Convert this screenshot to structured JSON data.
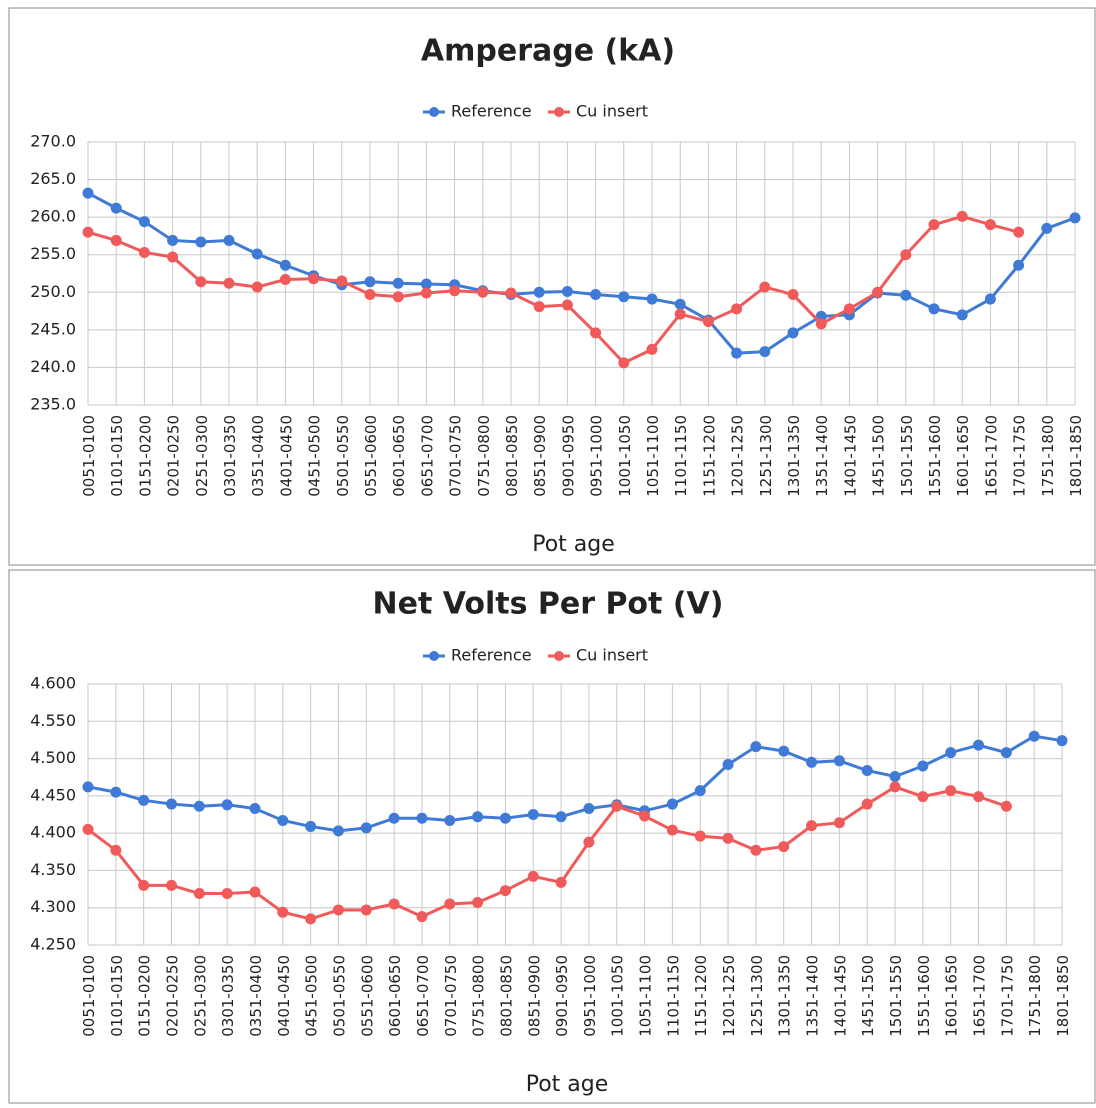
{
  "chart_data": [
    {
      "type": "line",
      "title": "Amperage (kA)",
      "x_label": "Pot age",
      "grid": true,
      "legend": "top",
      "categories": [
        "0051-0100",
        "0101-0150",
        "0151-0200",
        "0201-0250",
        "0251-0300",
        "0301-0350",
        "0351-0400",
        "0401-0450",
        "0451-0500",
        "0501-0550",
        "0551-0600",
        "0601-0650",
        "0651-0700",
        "0701-0750",
        "0751-0800",
        "0801-0850",
        "0851-0900",
        "0901-0950",
        "0951-1000",
        "1001-1050",
        "1051-1100",
        "1101-1150",
        "1151-1200",
        "1201-1250",
        "1251-1300",
        "1301-1350",
        "1351-1400",
        "1401-1450",
        "1451-1500",
        "1501-1550",
        "1551-1600",
        "1601-1650",
        "1651-1700",
        "1701-1750",
        "1751-1800",
        "1801-1850"
      ],
      "ylim": [
        235,
        270
      ],
      "yticks": [
        {
          "value": 235,
          "label": "235.0"
        },
        {
          "value": 240,
          "label": "240.0"
        },
        {
          "value": 245,
          "label": "245.0"
        },
        {
          "value": 250,
          "label": "250.0"
        },
        {
          "value": 255,
          "label": "255.0"
        },
        {
          "value": 260,
          "label": "260.0"
        },
        {
          "value": 265,
          "label": "265.0"
        },
        {
          "value": 270,
          "label": "270.0"
        }
      ],
      "series": [
        {
          "name": "Reference",
          "color": "#3f7bd6",
          "values": [
            263.2,
            261.2,
            259.4,
            256.9,
            256.7,
            256.9,
            255.1,
            253.6,
            252.2,
            251.0,
            251.4,
            251.2,
            251.1,
            251.0,
            250.2,
            249.7,
            250.0,
            250.1,
            249.7,
            249.4,
            249.1,
            248.4,
            246.3,
            241.9,
            242.1,
            244.6,
            246.8,
            247.0,
            249.9,
            249.6,
            247.8,
            247.0,
            249.1,
            253.6,
            258.5,
            259.9
          ]
        },
        {
          "name": "Cu insert",
          "color": "#f05a5a",
          "values": [
            258.0,
            256.9,
            255.3,
            254.7,
            251.4,
            251.2,
            250.7,
            251.7,
            251.8,
            251.5,
            249.7,
            249.4,
            249.9,
            250.2,
            250.0,
            249.9,
            248.1,
            248.3,
            244.6,
            240.6,
            242.4,
            247.1,
            246.1,
            247.8,
            250.7,
            249.7,
            245.8,
            247.8,
            250.0,
            255.0,
            259.0,
            260.1,
            259.0,
            258.0,
            null,
            null
          ]
        }
      ]
    },
    {
      "type": "line",
      "title": "Net Volts Per Pot (V)",
      "x_label": "Pot age",
      "grid": true,
      "legend": "top",
      "categories": [
        "0051-0100",
        "0101-0150",
        "0151-0200",
        "0201-0250",
        "0251-0300",
        "0301-0350",
        "0351-0400",
        "0401-0450",
        "0451-0500",
        "0501-0550",
        "0551-0600",
        "0601-0650",
        "0651-0700",
        "0701-0750",
        "0751-0800",
        "0801-0850",
        "0851-0900",
        "0901-0950",
        "0951-1000",
        "1001-1050",
        "1051-1100",
        "1101-1150",
        "1151-1200",
        "1201-1250",
        "1251-1300",
        "1301-1350",
        "1351-1400",
        "1401-1450",
        "1451-1500",
        "1501-1550",
        "1551-1600",
        "1601-1650",
        "1651-1700",
        "1701-1750",
        "1751-1800",
        "1801-1850"
      ],
      "ylim": [
        4.25,
        4.6
      ],
      "yticks": [
        {
          "value": 4.25,
          "label": "4.250"
        },
        {
          "value": 4.3,
          "label": "4.300"
        },
        {
          "value": 4.35,
          "label": "4.350"
        },
        {
          "value": 4.4,
          "label": "4.400"
        },
        {
          "value": 4.45,
          "label": "4.450"
        },
        {
          "value": 4.5,
          "label": "4.500"
        },
        {
          "value": 4.55,
          "label": "4.550"
        },
        {
          "value": 4.6,
          "label": "4.600"
        }
      ],
      "series": [
        {
          "name": "Reference",
          "color": "#3f7bd6",
          "values": [
            4.462,
            4.455,
            4.444,
            4.439,
            4.436,
            4.438,
            4.433,
            4.417,
            4.409,
            4.403,
            4.407,
            4.42,
            4.42,
            4.417,
            4.422,
            4.42,
            4.425,
            4.422,
            4.433,
            4.438,
            4.43,
            4.439,
            4.457,
            4.492,
            4.516,
            4.51,
            4.495,
            4.497,
            4.484,
            4.476,
            4.49,
            4.508,
            4.518,
            4.508,
            4.53,
            4.524
          ]
        },
        {
          "name": "Cu insert",
          "color": "#f05a5a",
          "values": [
            4.405,
            4.377,
            4.33,
            4.33,
            4.319,
            4.319,
            4.321,
            4.294,
            4.285,
            4.297,
            4.297,
            4.305,
            4.288,
            4.305,
            4.307,
            4.323,
            4.342,
            4.334,
            4.388,
            4.436,
            4.423,
            4.404,
            4.396,
            4.393,
            4.377,
            4.382,
            4.41,
            4.414,
            4.439,
            4.462,
            4.449,
            4.457,
            4.449,
            4.436,
            null,
            null
          ]
        }
      ]
    }
  ]
}
